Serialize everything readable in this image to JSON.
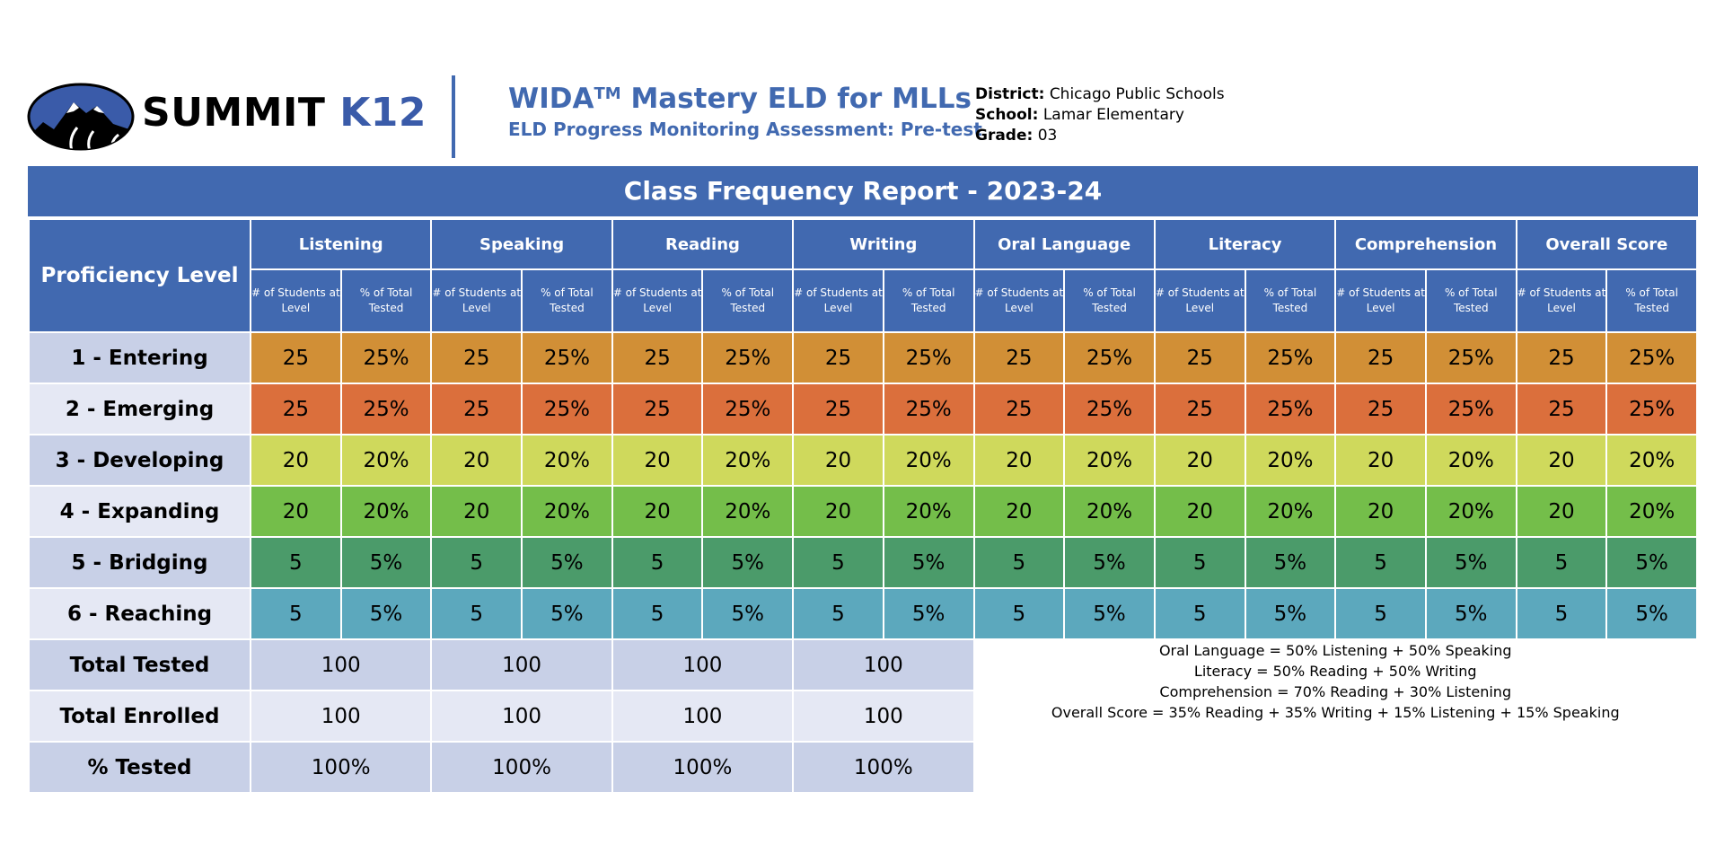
{
  "brand": {
    "summit": "SUMMIT",
    "k12": "K12"
  },
  "header": {
    "title_main": "WIDA",
    "title_sup": "TM",
    "title_rest": " Mastery ELD for MLLs",
    "subtitle": "ELD Progress Monitoring Assessment: Pre-test"
  },
  "info": {
    "district_label": "District:",
    "district": "Chicago Public Schools",
    "school_label": "School:",
    "school": "Lamar Elementary",
    "grade_label": "Grade:",
    "grade": "03"
  },
  "report": {
    "title": "Class Frequency Report - 2023-24",
    "proficiency_header": "Proficiency Level",
    "domains": [
      "Listening",
      "Speaking",
      "Reading",
      "Writing",
      "Oral Language",
      "Literacy",
      "Comprehension",
      "Overall Score"
    ],
    "subheaders": {
      "count": "# of Students at Level",
      "pct": "% of Total Tested"
    },
    "levels": [
      {
        "label": "1 - Entering",
        "color": "#d18f36",
        "count": "25",
        "pct": "25%"
      },
      {
        "label": "2 - Emerging",
        "color": "#db6f3c",
        "count": "25",
        "pct": "25%"
      },
      {
        "label": "3 - Developing",
        "color": "#cfd95c",
        "count": "20",
        "pct": "20%"
      },
      {
        "label": "4 - Expanding",
        "color": "#74be4a",
        "count": "20",
        "pct": "20%"
      },
      {
        "label": "5 - Bridging",
        "color": "#4b9b6a",
        "count": "5",
        "pct": "5%"
      },
      {
        "label": "6 - Reaching",
        "color": "#5ca8bd",
        "count": "5",
        "pct": "5%"
      }
    ],
    "totals": [
      {
        "label": "Total Tested",
        "values": [
          "100",
          "100",
          "100",
          "100"
        ]
      },
      {
        "label": "Total Enrolled",
        "values": [
          "100",
          "100",
          "100",
          "100"
        ]
      },
      {
        "label": "% Tested",
        "values": [
          "100%",
          "100%",
          "100%",
          "100%"
        ]
      }
    ],
    "notes": [
      "Oral Language = 50% Listening + 50% Speaking",
      "Literacy = 50% Reading + 50% Writing",
      "Comprehension = 70% Reading + 30% Listening",
      "Overall Score = 35% Reading + 35% Writing + 15% Listening + 15% Speaking"
    ]
  },
  "colors": {
    "accent": "#4169b0",
    "row_dark": "#c8d0e7",
    "row_light": "#e5e8f4"
  }
}
